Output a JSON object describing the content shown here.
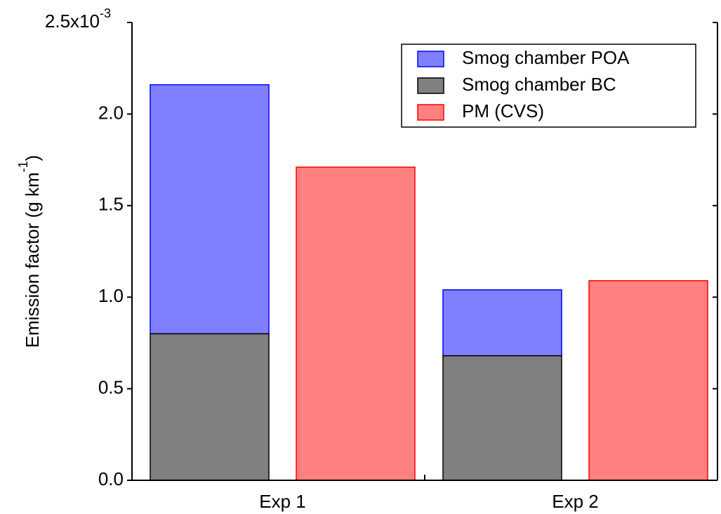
{
  "chart_data": {
    "type": "bar",
    "ylabel": [
      "Emission factor (g km",
      "-1",
      ")"
    ],
    "categories": [
      "Exp 1",
      "Exp 2"
    ],
    "series": [
      {
        "name": "Smog chamber POA",
        "color": "#8080ff",
        "edge": "#0000ff",
        "values": [
          1.36,
          0.36
        ]
      },
      {
        "name": "Smog chamber BC",
        "color": "#808080",
        "edge": "#000000",
        "values": [
          0.8,
          0.68
        ]
      },
      {
        "name": "PM (CVS)",
        "color": "#ff8080",
        "edge": "#ff0000",
        "values": [
          1.71,
          1.09
        ]
      }
    ],
    "ylim": [
      0,
      2.5
    ],
    "yticks": [
      {
        "value": 0,
        "label": "0.0"
      },
      0.5,
      {
        "value": 1,
        "label": "1.0"
      },
      1.5,
      {
        "value": 2,
        "label": "2.0"
      },
      {
        "value": 2.5,
        "label": "2.5x10",
        "exponent": "-3"
      }
    ],
    "legend": "top-right"
  }
}
